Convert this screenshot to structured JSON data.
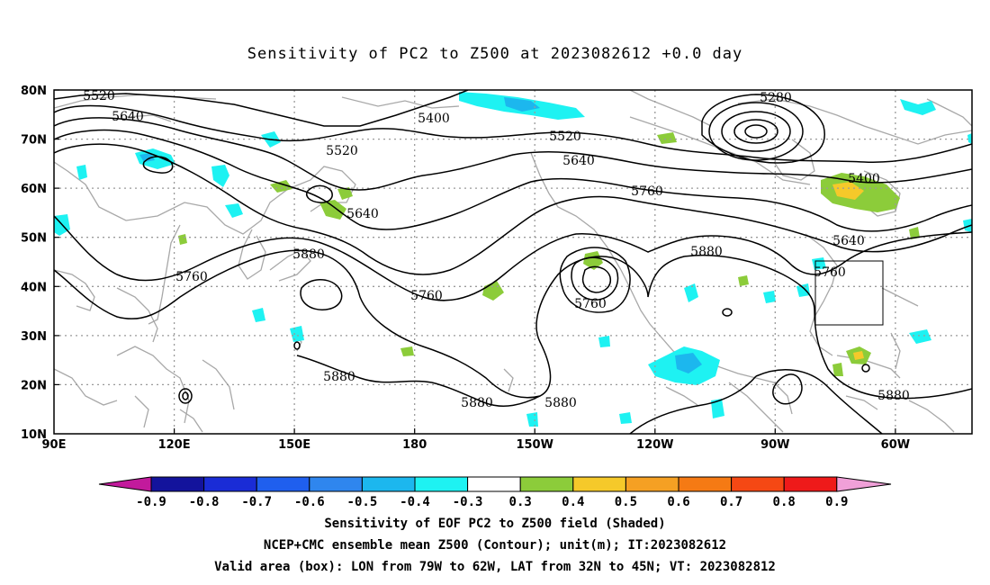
{
  "title": "Sensitivity of PC2 to Z500 at 2023082612 +0.0 day",
  "lat_labels": [
    "80N",
    "70N",
    "60N",
    "50N",
    "40N",
    "30N",
    "20N",
    "10N"
  ],
  "lon_labels": [
    "90E",
    "120E",
    "150E",
    "180",
    "150W",
    "120W",
    "90W",
    "60W"
  ],
  "contour_labels": [
    {
      "text": "5520"
    },
    {
      "text": "5640"
    },
    {
      "text": "5400"
    },
    {
      "text": "5280"
    },
    {
      "text": "5520"
    },
    {
      "text": "5520"
    },
    {
      "text": "5640"
    },
    {
      "text": "5640"
    },
    {
      "text": "5760"
    },
    {
      "text": "5400"
    },
    {
      "text": "5640"
    },
    {
      "text": "5880"
    },
    {
      "text": "5760"
    },
    {
      "text": "5760"
    },
    {
      "text": "5760"
    },
    {
      "text": "5880"
    },
    {
      "text": "5760"
    },
    {
      "text": "5880"
    },
    {
      "text": "5880"
    },
    {
      "text": "5880"
    },
    {
      "text": "5880"
    }
  ],
  "colorbar": {
    "colors": [
      "#c21a9c",
      "#13139c",
      "#1a2cd6",
      "#1f5fee",
      "#2f86ee",
      "#1cb7ee",
      "#1ef2f2",
      "#ffffff",
      "#8ccc3a",
      "#f5c92a",
      "#f5a023",
      "#f57a14",
      "#f54814",
      "#ee1a1a",
      "#f0a0d8"
    ],
    "labels": [
      "-0.9",
      "-0.8",
      "-0.7",
      "-0.6",
      "-0.5",
      "-0.4",
      "-0.3",
      "0.3",
      "0.4",
      "0.5",
      "0.6",
      "0.7",
      "0.8",
      "0.9"
    ]
  },
  "captions": {
    "line1": "Sensitivity of EOF PC2 to Z500 field (Shaded)",
    "line2": "NCEP+CMC ensemble mean Z500 (Contour); unit(m); IT:2023082612",
    "line3": "Valid area (box): LON from 79W to 62W, LAT from 32N to 45N; VT: 2023082812"
  }
}
